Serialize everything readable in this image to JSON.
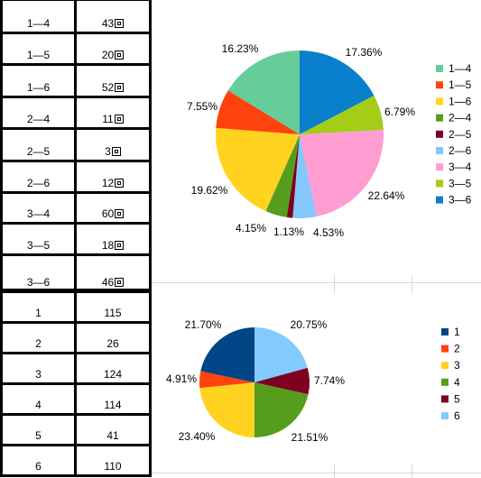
{
  "tables": [
    {
      "rows": [
        {
          "label": "1—4",
          "value": "43",
          "boxed": true
        },
        {
          "label": "1—5",
          "value": "20",
          "boxed": true
        },
        {
          "label": "1—6",
          "value": "52",
          "boxed": true
        },
        {
          "label": "2—4",
          "value": "11",
          "boxed": true
        },
        {
          "label": "2—5",
          "value": "3",
          "boxed": true
        },
        {
          "label": "2—6",
          "value": "12",
          "boxed": true
        },
        {
          "label": "3—4",
          "value": "60",
          "boxed": true
        },
        {
          "label": "3—5",
          "value": "18",
          "boxed": true
        },
        {
          "label": "3—6",
          "value": "46",
          "boxed": true
        }
      ]
    },
    {
      "rows": [
        {
          "label": "1",
          "value": "115"
        },
        {
          "label": "2",
          "value": "26"
        },
        {
          "label": "3",
          "value": "124"
        },
        {
          "label": "4",
          "value": "114"
        },
        {
          "label": "5",
          "value": "41"
        },
        {
          "label": "6",
          "value": "110"
        }
      ]
    }
  ],
  "chart_data": [
    {
      "type": "pie",
      "title": "",
      "legend_position": "right",
      "start": "12 o'clock, clockwise",
      "slices": [
        {
          "name": "3—6",
          "value": 46,
          "label": "17.36%",
          "color": "#0a7fcc"
        },
        {
          "name": "3—5",
          "value": 18,
          "label": "6.79%",
          "color": "#a5cc16"
        },
        {
          "name": "3—4",
          "value": 60,
          "label": "22.64%",
          "color": "#ff9dd2"
        },
        {
          "name": "2—6",
          "value": 12,
          "label": "4.53%",
          "color": "#86c7fb"
        },
        {
          "name": "2—5",
          "value": 3,
          "label": "1.13%",
          "color": "#7d0020"
        },
        {
          "name": "2—4",
          "value": 11,
          "label": "4.15%",
          "color": "#579d1c"
        },
        {
          "name": "1—6",
          "value": 52,
          "label": "19.62%",
          "color": "#ffd320"
        },
        {
          "name": "1—5",
          "value": 20,
          "label": "7.55%",
          "color": "#ff420e"
        },
        {
          "name": "1—4",
          "value": 43,
          "label": "16.23%",
          "color": "#66cc99"
        }
      ],
      "legend": [
        "1—4",
        "1—5",
        "1—6",
        "2—4",
        "2—5",
        "2—6",
        "3—4",
        "3—5",
        "3—6"
      ]
    },
    {
      "type": "pie",
      "title": "",
      "legend_position": "right",
      "start": "12 o'clock, clockwise",
      "slices": [
        {
          "name": "6",
          "value": 110,
          "label": "20.75%",
          "color": "#83caff"
        },
        {
          "name": "5",
          "value": 41,
          "label": "7.74%",
          "color": "#7e0021"
        },
        {
          "name": "4",
          "value": 114,
          "label": "21.51%",
          "color": "#579d1c"
        },
        {
          "name": "3",
          "value": 124,
          "label": "23.40%",
          "color": "#ffd320"
        },
        {
          "name": "2",
          "value": 26,
          "label": "4.91%",
          "color": "#ff420e"
        },
        {
          "name": "1",
          "value": 115,
          "label": "21.70%",
          "color": "#004586"
        }
      ],
      "legend": [
        "1",
        "2",
        "3",
        "4",
        "5",
        "6"
      ]
    }
  ]
}
